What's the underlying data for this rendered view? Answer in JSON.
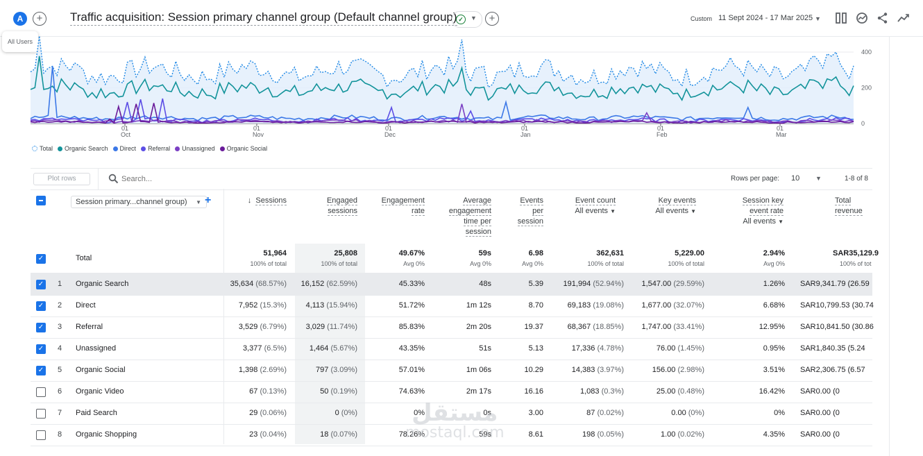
{
  "header": {
    "avatar_letter": "A",
    "title": "Traffic acquisition: Session primary channel group (Default channel group)",
    "custom_label": "Custom",
    "date_range": "11 Sept 2024 - 17 Mar 2025"
  },
  "segment_chip": "All Users",
  "chart_data": {
    "type": "line",
    "x_ticks": [
      {
        "day": "01",
        "month": "Oct"
      },
      {
        "day": "01",
        "month": "Nov"
      },
      {
        "day": "01",
        "month": "Dec"
      },
      {
        "day": "01",
        "month": "Jan"
      },
      {
        "day": "01",
        "month": "Feb"
      },
      {
        "day": "01",
        "month": "Mar"
      }
    ],
    "y_ticks": [
      "400",
      "200",
      "0"
    ],
    "ylim": [
      0,
      400
    ],
    "grid": true,
    "legend_position": "bottom-left",
    "series": [
      {
        "name": "Total",
        "color": "#1e88e5",
        "style": "dotted-fill"
      },
      {
        "name": "Organic Search",
        "color": "#12939a"
      },
      {
        "name": "Direct",
        "color": "#3b78e7"
      },
      {
        "name": "Referral",
        "color": "#5c4ee5"
      },
      {
        "name": "Unassigned",
        "color": "#7b3fc4"
      },
      {
        "name": "Organic Social",
        "color": "#6a1b9a"
      }
    ]
  },
  "toolbar": {
    "plot_rows": "Plot rows",
    "search_placeholder": "Search...",
    "rows_per_page_label": "Rows per page:",
    "rows_per_page_value": "10",
    "pager": "1-8 of 8"
  },
  "table": {
    "dimension": "Session primary...channel group)",
    "headers": {
      "sessions": "Sessions",
      "engaged_1": "Engaged",
      "engaged_2": "sessions",
      "engrate_1": "Engagement",
      "engrate_2": "rate",
      "avg_1": "Average",
      "avg_2": "engagement",
      "avg_3": "time per",
      "avg_4": "session",
      "epl_1": "Events",
      "epl_2": "per",
      "epl_3": "session",
      "evc_1": "Event count",
      "evc_2": "All events",
      "key_1": "Key events",
      "key_2": "All events",
      "skr_1": "Session key",
      "skr_2": "event rate",
      "skr_3": "All events",
      "rev_1": "Total revenue"
    },
    "total": {
      "label": "Total",
      "sessions": "51,964",
      "sessions_sub": "100% of total",
      "engaged": "25,808",
      "engaged_sub": "100% of total",
      "engrate": "49.67%",
      "engrate_sub": "Avg 0%",
      "avgtime": "59s",
      "avgtime_sub": "Avg 0%",
      "eps": "6.98",
      "eps_sub": "Avg 0%",
      "events": "362,631",
      "events_sub": "100% of total",
      "key": "5,229.00",
      "key_sub": "100% of total",
      "skr": "2.94%",
      "skr_sub": "Avg 0%",
      "rev": "SAR35,129.9",
      "rev_sub": "100% of tot"
    },
    "rows": [
      {
        "idx": "1",
        "name": "Organic Search",
        "sessions": "35,634",
        "sessions_p": "(68.57%)",
        "engaged": "16,152",
        "engaged_p": "(62.59%)",
        "engrate": "45.33%",
        "avgtime": "48s",
        "eps": "5.39",
        "events": "191,994",
        "events_p": "(52.94%)",
        "key": "1,547.00",
        "key_p": "(29.59%)",
        "skr": "1.26%",
        "rev": "SAR9,341.79",
        "rev_p": "(26.59"
      },
      {
        "idx": "2",
        "name": "Direct",
        "sessions": "7,952",
        "sessions_p": "(15.3%)",
        "engaged": "4,113",
        "engaged_p": "(15.94%)",
        "engrate": "51.72%",
        "avgtime": "1m 12s",
        "eps": "8.70",
        "events": "69,183",
        "events_p": "(19.08%)",
        "key": "1,677.00",
        "key_p": "(32.07%)",
        "skr": "6.68%",
        "rev": "SAR10,799.53",
        "rev_p": "(30.74"
      },
      {
        "idx": "3",
        "name": "Referral",
        "sessions": "3,529",
        "sessions_p": "(6.79%)",
        "engaged": "3,029",
        "engaged_p": "(11.74%)",
        "engrate": "85.83%",
        "avgtime": "2m 20s",
        "eps": "19.37",
        "events": "68,367",
        "events_p": "(18.85%)",
        "key": "1,747.00",
        "key_p": "(33.41%)",
        "skr": "12.95%",
        "rev": "SAR10,841.50",
        "rev_p": "(30.86"
      },
      {
        "idx": "4",
        "name": "Unassigned",
        "sessions": "3,377",
        "sessions_p": "(6.5%)",
        "engaged": "1,464",
        "engaged_p": "(5.67%)",
        "engrate": "43.35%",
        "avgtime": "51s",
        "eps": "5.13",
        "events": "17,336",
        "events_p": "(4.78%)",
        "key": "76.00",
        "key_p": "(1.45%)",
        "skr": "0.95%",
        "rev": "SAR1,840.35",
        "rev_p": "(5.24"
      },
      {
        "idx": "5",
        "name": "Organic Social",
        "sessions": "1,398",
        "sessions_p": "(2.69%)",
        "engaged": "797",
        "engaged_p": "(3.09%)",
        "engrate": "57.01%",
        "avgtime": "1m 06s",
        "eps": "10.29",
        "events": "14,383",
        "events_p": "(3.97%)",
        "key": "156.00",
        "key_p": "(2.98%)",
        "skr": "3.51%",
        "rev": "SAR2,306.75",
        "rev_p": "(6.57"
      },
      {
        "idx": "6",
        "name": "Organic Video",
        "sessions": "67",
        "sessions_p": "(0.13%)",
        "engaged": "50",
        "engaged_p": "(0.19%)",
        "engrate": "74.63%",
        "avgtime": "2m 17s",
        "eps": "16.16",
        "events": "1,083",
        "events_p": "(0.3%)",
        "key": "25.00",
        "key_p": "(0.48%)",
        "skr": "16.42%",
        "rev": "SAR0.00",
        "rev_p": "(0"
      },
      {
        "idx": "7",
        "name": "Paid Search",
        "sessions": "29",
        "sessions_p": "(0.06%)",
        "engaged": "0",
        "engaged_p": "(0%)",
        "engrate": "0%",
        "avgtime": "0s",
        "eps": "3.00",
        "events": "87",
        "events_p": "(0.02%)",
        "key": "0.00",
        "key_p": "(0%)",
        "skr": "0%",
        "rev": "SAR0.00",
        "rev_p": "(0"
      },
      {
        "idx": "8",
        "name": "Organic Shopping",
        "sessions": "23",
        "sessions_p": "(0.04%)",
        "engaged": "18",
        "engaged_p": "(0.07%)",
        "engrate": "78.26%",
        "avgtime": "59s",
        "eps": "8.61",
        "events": "198",
        "events_p": "(0.05%)",
        "key": "1.00",
        "key_p": "(0.02%)",
        "skr": "4.35%",
        "rev": "SAR0.00",
        "rev_p": "(0"
      }
    ],
    "checked": [
      true,
      true,
      true,
      true,
      true,
      false,
      false,
      false
    ]
  },
  "watermark": {
    "arabic": "مستقل",
    "latin": "mostaql.com"
  }
}
